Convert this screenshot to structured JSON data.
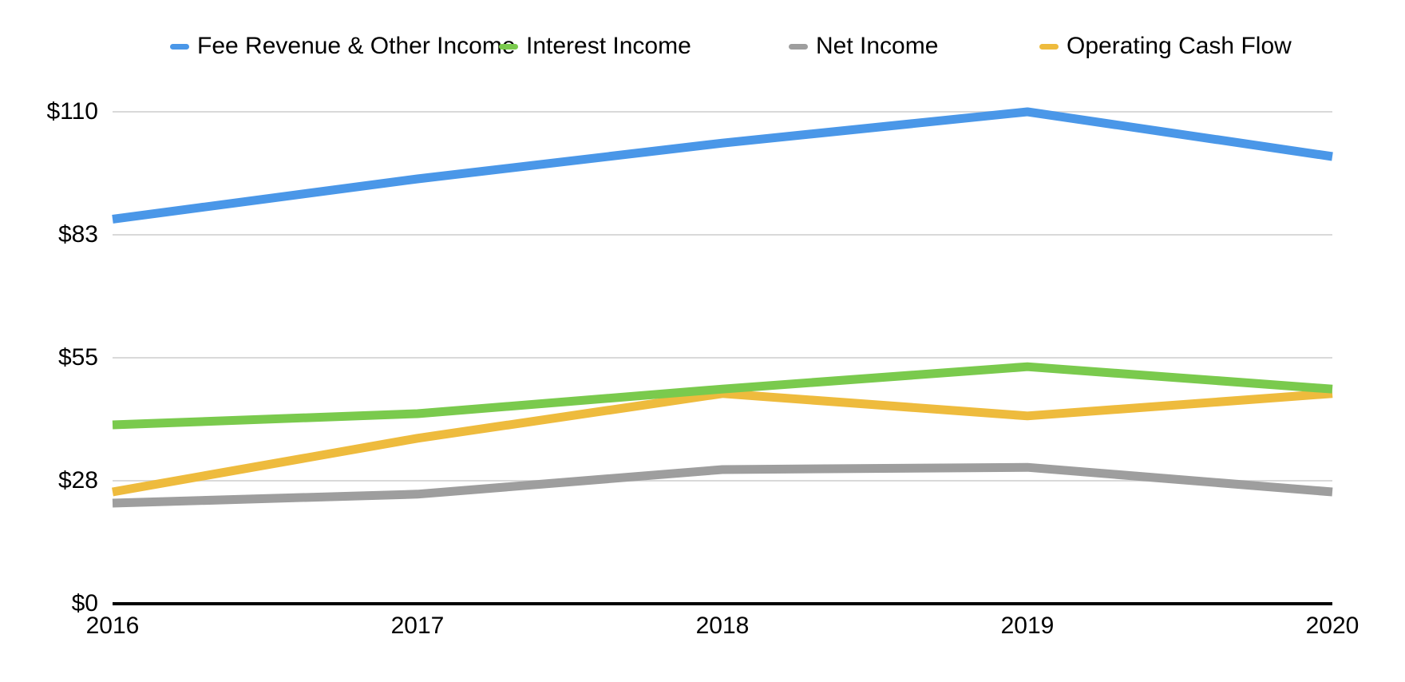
{
  "chart_data": {
    "type": "line",
    "x": [
      2016,
      2017,
      2018,
      2019,
      2020
    ],
    "x_tick_labels": [
      "2016",
      "2017",
      "2018",
      "2019",
      "2020"
    ],
    "series": [
      {
        "name": "Fee Revenue & Other Income",
        "color": "#4a97e8",
        "values": [
          86,
          95,
          103,
          110,
          100
        ]
      },
      {
        "name": "Interest Income",
        "color": "#7aca4d",
        "values": [
          40,
          42.5,
          48,
          53,
          48
        ]
      },
      {
        "name": "Net Income",
        "color": "#9e9e9e",
        "values": [
          22.5,
          24.5,
          30,
          30.5,
          25
        ]
      },
      {
        "name": "Operating Cash Flow",
        "color": "#eebb3d",
        "values": [
          25,
          37,
          47,
          42,
          47
        ]
      }
    ],
    "ylim": [
      0,
      110
    ],
    "y_ticks": [
      {
        "value": 0,
        "label": "$0"
      },
      {
        "value": 27.5,
        "label": "$28"
      },
      {
        "value": 55,
        "label": "$55"
      },
      {
        "value": 82.5,
        "label": "$83"
      },
      {
        "value": 110,
        "label": "$110"
      }
    ],
    "legend_position": "top",
    "grid": true,
    "gridline_color": "#d9d9d9",
    "axis_color": "#000000",
    "text_color": "#000000"
  }
}
